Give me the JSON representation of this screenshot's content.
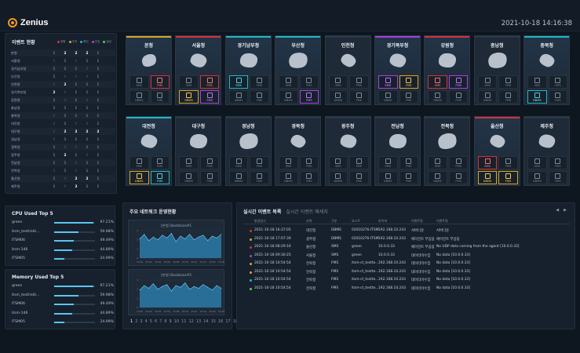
{
  "header": {
    "logo": "Zenius",
    "clock": "2021-10-18 14:16:38"
  },
  "events": {
    "title": "이벤트 현황",
    "legend": [
      "위험",
      "주의",
      "확인",
      "관심",
      "정상"
    ],
    "rows": [
      [
        "본청",
        "1",
        "2",
        "2",
        "2",
        "1"
      ],
      [
        "서울청",
        "0",
        "1",
        "0",
        "1",
        "1"
      ],
      [
        "경기남부청",
        "1",
        "1",
        "1",
        "0",
        "1"
      ],
      [
        "부산청",
        "1",
        "0",
        "0",
        "0",
        "1"
      ],
      [
        "인천청",
        "0",
        "2",
        "1",
        "1",
        "1"
      ],
      [
        "경기북부청",
        "2",
        "0",
        "1",
        "1",
        "1"
      ],
      [
        "강원청",
        "1",
        "0",
        "1",
        "0",
        "1"
      ],
      [
        "충남청",
        "1",
        "1",
        "1",
        "1",
        "1"
      ],
      [
        "충북청",
        "0",
        "1",
        "1",
        "1",
        "1"
      ],
      [
        "대전청",
        "0",
        "1",
        "0",
        "0",
        "1"
      ],
      [
        "대구청",
        "0",
        "2",
        "2",
        "2",
        "2"
      ],
      [
        "경남청",
        "0",
        "1",
        "1",
        "1",
        "1"
      ],
      [
        "경북청",
        "1",
        "0",
        "0",
        "1",
        "1"
      ],
      [
        "광주청",
        "1",
        "2",
        "1",
        "0",
        "1"
      ],
      [
        "전남청",
        "1",
        "1",
        "0",
        "1",
        "1"
      ],
      [
        "전북청",
        "0",
        "1",
        "0",
        "1",
        "1"
      ],
      [
        "울산청",
        "1",
        "0",
        "2",
        "2",
        "1"
      ],
      [
        "제주청",
        "1",
        "0",
        "2",
        "1",
        "1"
      ]
    ]
  },
  "regions": [
    {
      "name": "본청",
      "color": "#d8a42a",
      "cells": [
        [
          "SMS",
          ""
        ],
        [
          "FMS",
          "alert"
        ],
        [
          "DBMS",
          ""
        ],
        [
          "FMS",
          ""
        ]
      ]
    },
    {
      "name": "서울청",
      "color": "#d4313c",
      "cells": [
        [
          "SMS",
          ""
        ],
        [
          "FMS",
          "alert"
        ],
        [
          "DBMS",
          "warn"
        ],
        [
          "FMS",
          "purple"
        ]
      ]
    },
    {
      "name": "경기남부청",
      "color": "#1fb7c6",
      "cells": [
        [
          "SMS",
          "cyan"
        ],
        [
          "FMS",
          ""
        ],
        [
          "DBMS",
          ""
        ],
        [
          "FMS",
          ""
        ]
      ]
    },
    {
      "name": "부산청",
      "color": "#1fb7c6",
      "cells": [
        [
          "SMS",
          ""
        ],
        [
          "FMS",
          ""
        ],
        [
          "DBMS",
          ""
        ],
        [
          "FMS",
          "purple"
        ]
      ]
    },
    {
      "name": "인천청",
      "color": "#2a3847",
      "cells": [
        [
          "SMS",
          ""
        ],
        [
          "FMS",
          ""
        ],
        [
          "DBMS",
          ""
        ],
        [
          "FMS",
          ""
        ]
      ]
    },
    {
      "name": "경기북부청",
      "color": "#a742d9",
      "cells": [
        [
          "SMS",
          "purple"
        ],
        [
          "FMS",
          "warn"
        ],
        [
          "DBMS",
          ""
        ],
        [
          "FMS",
          ""
        ]
      ]
    },
    {
      "name": "강원청",
      "color": "#d4313c",
      "cells": [
        [
          "SMS",
          "alert"
        ],
        [
          "FMS",
          "purple"
        ],
        [
          "DBMS",
          ""
        ],
        [
          "FMS",
          ""
        ]
      ]
    },
    {
      "name": "충남청",
      "color": "#2a3847",
      "cells": [
        [
          "SMS",
          ""
        ],
        [
          "FMS",
          ""
        ],
        [
          "DBMS",
          ""
        ],
        [
          "FMS",
          ""
        ]
      ]
    },
    {
      "name": "충북청",
      "color": "#1fb7c6",
      "cells": [
        [
          "SMS",
          ""
        ],
        [
          "FMS",
          ""
        ],
        [
          "DBMS",
          "cyan"
        ],
        [
          "FMS",
          ""
        ]
      ]
    },
    {
      "name": "대전청",
      "color": "#1fb7c6",
      "cells": [
        [
          "SMS",
          ""
        ],
        [
          "FMS",
          ""
        ],
        [
          "DBMS",
          "warn"
        ],
        [
          "FMS",
          "cyan"
        ]
      ]
    },
    {
      "name": "대구청",
      "color": "#2a3847",
      "cells": [
        [
          "SMS",
          ""
        ],
        [
          "FMS",
          ""
        ],
        [
          "DBMS",
          ""
        ],
        [
          "FMS",
          ""
        ]
      ]
    },
    {
      "name": "경남청",
      "color": "#2a3847",
      "cells": [
        [
          "SMS",
          ""
        ],
        [
          "FMS",
          ""
        ],
        [
          "DBMS",
          ""
        ],
        [
          "FMS",
          ""
        ]
      ]
    },
    {
      "name": "경북청",
      "color": "#2a3847",
      "cells": [
        [
          "SMS",
          ""
        ],
        [
          "FMS",
          ""
        ],
        [
          "DBMS",
          ""
        ],
        [
          "FMS",
          ""
        ]
      ]
    },
    {
      "name": "광주청",
      "color": "#2a3847",
      "cells": [
        [
          "SMS",
          ""
        ],
        [
          "FMS",
          ""
        ],
        [
          "DBMS",
          ""
        ],
        [
          "FMS",
          ""
        ]
      ]
    },
    {
      "name": "전남청",
      "color": "#2a3847",
      "cells": [
        [
          "SMS",
          ""
        ],
        [
          "FMS",
          ""
        ],
        [
          "DBMS",
          ""
        ],
        [
          "FMS",
          ""
        ]
      ]
    },
    {
      "name": "전북청",
      "color": "#2a3847",
      "cells": [
        [
          "SMS",
          ""
        ],
        [
          "FMS",
          ""
        ],
        [
          "DBMS",
          ""
        ],
        [
          "FMS",
          ""
        ]
      ]
    },
    {
      "name": "울산청",
      "color": "#d4313c",
      "cells": [
        [
          "SMS",
          "alert"
        ],
        [
          "FMS",
          ""
        ],
        [
          "DBMS",
          "warn"
        ],
        [
          "FMS",
          "warn"
        ]
      ]
    },
    {
      "name": "제주청",
      "color": "#2a3847",
      "cells": [
        [
          "SMS",
          ""
        ],
        [
          "FMS",
          ""
        ],
        [
          "DBMS",
          ""
        ],
        [
          "FMS",
          ""
        ]
      ]
    }
  ],
  "cpu": {
    "title": "CPU Used Top 5",
    "rows": [
      [
        "green",
        "97.21%",
        0.97
      ],
      [
        "itsm_testlinkt...",
        "59.98%",
        0.6
      ],
      [
        "ITSM06",
        "49.49%",
        0.49
      ],
      [
        "itsm-146",
        "44.89%",
        0.45
      ],
      [
        "ITSM05",
        "24.99%",
        0.25
      ]
    ]
  },
  "memory": {
    "title": "Memory Used Top 5",
    "rows": [
      [
        "green",
        "97.21%",
        0.97
      ],
      [
        "itsm_testlinkt...",
        "59.98%",
        0.6
      ],
      [
        "ITSM06",
        "49.49%",
        0.49
      ],
      [
        "itsm-146",
        "44.89%",
        0.45
      ],
      [
        "ITSM05",
        "24.99%",
        0.25
      ]
    ]
  },
  "network": {
    "title": "주요 네트워크 운영현황",
    "pages": [
      "1",
      "2",
      "3",
      "4",
      "5",
      "6",
      "7",
      "8",
      "9",
      "10",
      "11",
      "12",
      "13",
      "14",
      "15",
      "16",
      "17",
      "18"
    ]
  },
  "chart_data": [
    {
      "type": "area",
      "title": "[본청] Backbone#1",
      "x": [
        "15:00",
        "15:01",
        "15:02",
        "15:03",
        "15:04",
        "15:05",
        "15:06",
        "15:07",
        "15:08",
        "15:09",
        "15:10",
        "15:11",
        "15:12",
        "15:13",
        "15:14",
        "15:15",
        "15:16",
        "15:17",
        "15:18"
      ],
      "values": [
        2.1,
        2.6,
        1.9,
        2.3,
        2.0,
        2.5,
        2.2,
        2.7,
        1.8,
        2.4,
        2.1,
        2.6,
        2.0,
        2.3,
        2.5,
        1.9,
        2.4,
        2.2,
        2.6
      ],
      "ylim": [
        0,
        3
      ]
    },
    {
      "type": "area",
      "title": "[본청] Backbone#2",
      "x": [
        "15:00",
        "15:01",
        "15:02",
        "15:03",
        "15:04",
        "15:05",
        "15:06",
        "15:07",
        "15:08",
        "15:09",
        "15:10",
        "15:11",
        "15:12",
        "15:13",
        "15:14",
        "15:15",
        "15:16",
        "15:17",
        "15:18"
      ],
      "values": [
        1.9,
        2.4,
        2.1,
        2.6,
        2.0,
        2.3,
        2.5,
        1.8,
        2.4,
        2.2,
        2.7,
        2.0,
        2.3,
        2.1,
        2.5,
        2.2,
        1.9,
        2.4,
        2.1
      ],
      "ylim": [
        0,
        3
      ]
    }
  ],
  "realtime": {
    "tab1": "실시간 이벤트 목록",
    "tab2": "실시간 이벤트 메세지",
    "ctrl_prev": "◀",
    "ctrl_next": "▶",
    "headers": [
      "발생일시",
      "지역",
      "구분",
      "호스트",
      "아이피",
      "이벤트명",
      "이벤트명"
    ],
    "rows": [
      [
        "2021-10-18 16:37:05",
        "대전청",
        "DBMS",
        "02010276-ITSM",
        "192.168.10.243",
        "서버다운",
        "서버다운",
        "#d4313c"
      ],
      [
        "2021-10-18 17:07:39",
        "광주청",
        "DBMS",
        "02010276-ITSM",
        "192.168.10.243",
        "에이전트 무응답",
        "에이전트 무응답",
        "#d8a42a"
      ],
      [
        "2021-10-18 08:29:16",
        "울산청",
        "SMS",
        "green",
        "10.0.0.33",
        "에이전트 무응답",
        "No UDP data coming from the agent [10.0.0.33]",
        "#d4313c"
      ],
      [
        "2021-10-18 09:30:25",
        "서울청",
        "SMS",
        "green",
        "10.0.0.33",
        "데이터미수집",
        "No data [10.0.0.33]",
        "#a742d9"
      ],
      [
        "2021-10-18 10:54:54",
        "전북청",
        "FMS",
        "itsm-ct_testte...",
        "192.168.10.243",
        "데이터미수집",
        "No data [10.0.0.33]",
        "#d8a42a"
      ],
      [
        "2021-10-18 10:54:54",
        "전북청",
        "FMS",
        "itsm-ct_testte...",
        "192.168.10.243",
        "데이터미수집",
        "No data [10.0.0.33]",
        "#d8a42a"
      ],
      [
        "2021-10-18 10:54:54",
        "전북청",
        "FMS",
        "itsm-ct_testte...",
        "192.168.10.243",
        "데이터미수집",
        "No data [10.0.0.33]",
        "#1fb7c6"
      ],
      [
        "2021-10-18 10:54:54",
        "전북청",
        "FMS",
        "itsm-ct_testte...",
        "192.168.10.243",
        "데이터미수집",
        "No data [10.0.0.33]",
        "#59d14a"
      ]
    ]
  }
}
